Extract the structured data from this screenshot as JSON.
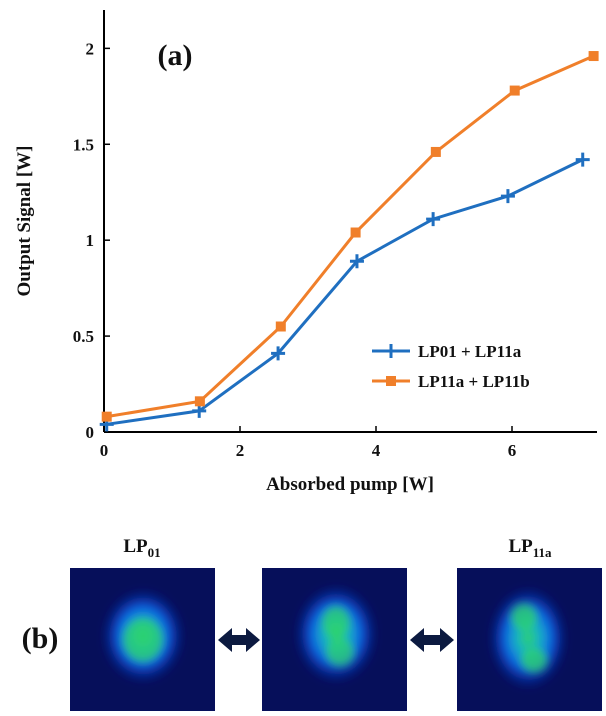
{
  "chart_data": {
    "type": "line",
    "panel_label": "(a)",
    "xlabel": "Absorbed pump [W]",
    "ylabel": "Output Signal [W]",
    "xlim": [
      0,
      7.25
    ],
    "xticks": [
      0,
      2,
      4,
      6
    ],
    "ylim": [
      0,
      2.2
    ],
    "yticks": [
      0,
      0.5,
      1,
      1.5,
      2
    ],
    "series": [
      {
        "name": "LP01 + LP11a",
        "color": "#1f6fc0",
        "marker": "plus",
        "x": [
          0.04,
          1.4,
          2.56,
          3.72,
          4.84,
          5.94,
          7.04
        ],
        "values": [
          0.04,
          0.11,
          0.41,
          0.89,
          1.11,
          1.23,
          1.42
        ]
      },
      {
        "name": "LP11a + LP11b",
        "color": "#f07f2a",
        "marker": "square",
        "x": [
          0.04,
          1.41,
          2.6,
          3.7,
          4.88,
          6.04,
          7.2
        ],
        "values": [
          0.08,
          0.16,
          0.55,
          1.04,
          1.46,
          1.78,
          1.96
        ]
      }
    ]
  },
  "panel_b": {
    "label": "(b)",
    "modes": [
      {
        "base": "LP",
        "sub": "01"
      },
      {
        "base": "LP",
        "sub": "11a"
      }
    ]
  }
}
